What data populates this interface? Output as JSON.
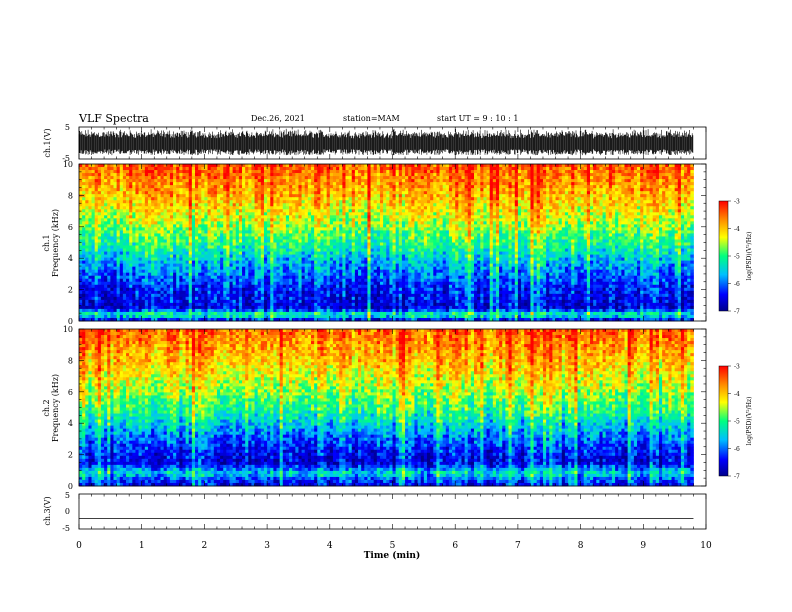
{
  "header": {
    "title": "VLF Spectra",
    "date": "Dec.26, 2021",
    "station": "station=MAM",
    "start": "start  UT  =   9  : 10 : 1"
  },
  "colors": {
    "background": "#ffffff",
    "axes": "#000000",
    "waveform": "#000000",
    "colormap": [
      "#00008b",
      "#0000ff",
      "#00bfff",
      "#00ff7f",
      "#ffff00",
      "#ff8c00",
      "#ff0000"
    ]
  },
  "chart_data": [
    {
      "type": "line",
      "panel": "ch1-waveform",
      "ylabel": "ch.1(V)",
      "ylim": [
        -5,
        5
      ],
      "yticks": [
        "5",
        "-5"
      ],
      "xlim": [
        0,
        10
      ],
      "description_note": "dense black broadband waveform spanning roughly -3 to +3 V over 0 to 9.8 min"
    },
    {
      "type": "heatmap",
      "panel": "ch1-spectrogram",
      "ylabel": "ch.1\nFrequency  (kHz)",
      "ylim": [
        0,
        10
      ],
      "yticks": [
        "0",
        "2",
        "4",
        "6",
        "8",
        "10"
      ],
      "xlim": [
        0,
        10
      ],
      "data_extent_min": 9.8,
      "colorbar": {
        "label": "log(PSD)(V²/Hz)",
        "range": [
          -7,
          -3
        ],
        "ticks": [
          "-3",
          "-4",
          "-5",
          "-6",
          "-7"
        ]
      },
      "level_profile": [
        {
          "f": 0.0,
          "v": -6.6
        },
        {
          "f": 0.4,
          "v": -5.0
        },
        {
          "f": 0.8,
          "v": -6.5
        },
        {
          "f": 2.0,
          "v": -6.3
        },
        {
          "f": 3.5,
          "v": -5.7
        },
        {
          "f": 5.0,
          "v": -5.0
        },
        {
          "f": 6.5,
          "v": -4.4
        },
        {
          "f": 8.0,
          "v": -3.9
        },
        {
          "f": 10.0,
          "v": -3.4
        }
      ]
    },
    {
      "type": "heatmap",
      "panel": "ch2-spectrogram",
      "ylabel": "ch.2\nFrequency  (kHz)",
      "ylim": [
        0,
        10
      ],
      "yticks": [
        "0",
        "2",
        "4",
        "6",
        "8",
        "10"
      ],
      "xlim": [
        0,
        10
      ],
      "data_extent_min": 9.8,
      "colorbar": {
        "label": "log(PSD)(V²/Hz)",
        "range": [
          -7,
          -3
        ],
        "ticks": [
          "-3",
          "-4",
          "-5",
          "-6",
          "-7"
        ]
      },
      "level_profile": [
        {
          "f": 0.0,
          "v": -6.5
        },
        {
          "f": 0.5,
          "v": -6.0
        },
        {
          "f": 0.8,
          "v": -5.4
        },
        {
          "f": 1.5,
          "v": -6.6
        },
        {
          "f": 3.0,
          "v": -6.0
        },
        {
          "f": 4.5,
          "v": -5.2
        },
        {
          "f": 6.0,
          "v": -4.6
        },
        {
          "f": 8.0,
          "v": -4.0
        },
        {
          "f": 10.0,
          "v": -3.5
        }
      ]
    },
    {
      "type": "line",
      "panel": "ch3-waveform",
      "ylabel": "ch.3(V)",
      "ylim": [
        -5,
        5
      ],
      "yticks": [
        "5",
        "0",
        "-5"
      ],
      "xlim": [
        0,
        10
      ],
      "series": [
        {
          "x": [
            0,
            9.8
          ],
          "y": [
            -2,
            -2
          ]
        }
      ]
    }
  ],
  "xaxis": {
    "label": "Time  (min)",
    "ticks": [
      "0",
      "1",
      "2",
      "3",
      "4",
      "5",
      "6",
      "7",
      "8",
      "9",
      "10"
    ]
  }
}
